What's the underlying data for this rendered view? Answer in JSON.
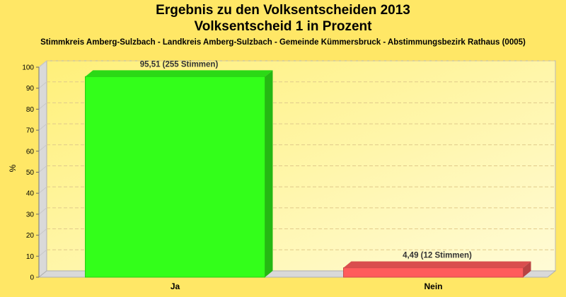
{
  "chart_data": {
    "type": "bar",
    "title": "Ergebnis zu den Volksentscheiden 2013",
    "title2": "Volksentscheid 1 in Prozent",
    "subtitle": "Stimmkreis Amberg-Sulzbach - Landkreis Amberg-Sulzbach - Gemeinde Kümmersbruck - Abstimmungsbezirk Rathaus (0005)",
    "xlabel": "",
    "ylabel": "%",
    "ylim": [
      0,
      100
    ],
    "yticks": [
      0,
      10,
      20,
      30,
      40,
      50,
      60,
      70,
      80,
      90,
      100
    ],
    "categories": [
      "Ja",
      "Nein"
    ],
    "values": [
      95.51,
      4.49
    ],
    "data_labels": [
      "95,51 (255 Stimmen)",
      "4,49 (12 Stimmen)"
    ],
    "colors": [
      "#33ff1a",
      "#ff5c5c"
    ],
    "grid": true,
    "style": "3d"
  }
}
